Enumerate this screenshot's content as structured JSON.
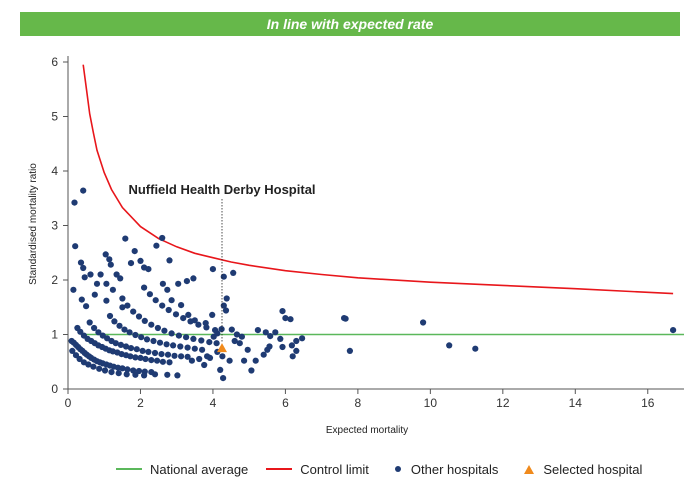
{
  "banner": {
    "text": "In line with expected rate"
  },
  "colors": {
    "banner": "#66b84a",
    "national_average": "#5bb85b",
    "control_limit": "#e8161b",
    "other_hospitals": "#1f3b73",
    "selected_hospital": "#f08a1c",
    "axis": "#555555"
  },
  "legend": {
    "national_average": "National average",
    "control_limit": "Control limit",
    "other_hospitals": "Other hospitals",
    "selected_hospital": "Selected hospital"
  },
  "chart_data": {
    "type": "scatter",
    "xlabel": "Expected mortality",
    "ylabel": "Standardised mortality ratio",
    "xlim": [
      0,
      17
    ],
    "ylim": [
      0,
      6
    ],
    "xticks": [
      0,
      2,
      4,
      6,
      8,
      10,
      12,
      14,
      16
    ],
    "yticks": [
      0,
      1,
      2,
      3,
      4,
      5,
      6
    ],
    "national_average": 1,
    "annotation": {
      "text": "Nuffield Health Derby Hospital",
      "x": 4.25
    },
    "selected_hospital": {
      "x": 4.25,
      "y": 0.75
    },
    "control_limit": [
      [
        0.42,
        5.95
      ],
      [
        0.5,
        5.55
      ],
      [
        0.6,
        5.05
      ],
      [
        0.7,
        4.7
      ],
      [
        0.8,
        4.38
      ],
      [
        1.0,
        3.97
      ],
      [
        1.2,
        3.66
      ],
      [
        1.5,
        3.33
      ],
      [
        2.0,
        2.98
      ],
      [
        2.5,
        2.76
      ],
      [
        3.0,
        2.61
      ],
      [
        3.5,
        2.49
      ],
      [
        4.0,
        2.41
      ],
      [
        4.5,
        2.33
      ],
      [
        5.0,
        2.27
      ],
      [
        6.0,
        2.17
      ],
      [
        7.0,
        2.1
      ],
      [
        8.0,
        2.04
      ],
      [
        10.0,
        1.96
      ],
      [
        12.0,
        1.9
      ],
      [
        14.0,
        1.84
      ],
      [
        16.7,
        1.75
      ]
    ],
    "other_hospitals": [
      [
        0.18,
        3.42
      ],
      [
        0.42,
        3.64
      ],
      [
        0.2,
        2.62
      ],
      [
        0.36,
        2.32
      ],
      [
        0.42,
        2.22
      ],
      [
        0.62,
        2.1
      ],
      [
        0.46,
        2.05
      ],
      [
        0.5,
        1.52
      ],
      [
        0.38,
        1.64
      ],
      [
        0.15,
        1.82
      ],
      [
        0.8,
        1.93
      ],
      [
        0.9,
        2.1
      ],
      [
        0.74,
        1.73
      ],
      [
        1.04,
        2.47
      ],
      [
        1.14,
        2.38
      ],
      [
        1.18,
        2.28
      ],
      [
        1.06,
        1.93
      ],
      [
        1.34,
        2.1
      ],
      [
        1.44,
        2.03
      ],
      [
        1.24,
        1.82
      ],
      [
        1.06,
        1.62
      ],
      [
        1.5,
        1.5
      ],
      [
        1.84,
        2.53
      ],
      [
        1.58,
        2.76
      ],
      [
        1.74,
        2.31
      ],
      [
        2.0,
        2.35
      ],
      [
        2.1,
        2.23
      ],
      [
        2.22,
        2.2
      ],
      [
        2.44,
        2.63
      ],
      [
        2.6,
        2.77
      ],
      [
        2.8,
        2.36
      ],
      [
        2.62,
        1.93
      ],
      [
        2.74,
        1.82
      ],
      [
        2.86,
        1.63
      ],
      [
        3.04,
        1.93
      ],
      [
        3.28,
        1.98
      ],
      [
        3.46,
        2.03
      ],
      [
        3.12,
        1.54
      ],
      [
        3.32,
        1.36
      ],
      [
        3.5,
        1.26
      ],
      [
        3.8,
        1.21
      ],
      [
        3.98,
        1.36
      ],
      [
        4.0,
        2.2
      ],
      [
        4.3,
        2.06
      ],
      [
        4.56,
        2.13
      ],
      [
        4.38,
        1.66
      ],
      [
        4.3,
        1.53
      ],
      [
        4.36,
        1.44
      ],
      [
        4.24,
        1.1
      ],
      [
        4.52,
        1.09
      ],
      [
        4.66,
        1.0
      ],
      [
        4.8,
        0.96
      ],
      [
        4.6,
        0.88
      ],
      [
        4.74,
        0.84
      ],
      [
        4.26,
        0.6
      ],
      [
        4.46,
        0.52
      ],
      [
        4.2,
        0.35
      ],
      [
        4.28,
        0.2
      ],
      [
        3.76,
        0.44
      ],
      [
        3.92,
        0.57
      ],
      [
        5.24,
        1.08
      ],
      [
        5.46,
        1.04
      ],
      [
        5.58,
        0.97
      ],
      [
        5.72,
        1.04
      ],
      [
        5.86,
        0.92
      ],
      [
        6.14,
        1.28
      ],
      [
        5.92,
        1.43
      ],
      [
        6.0,
        1.3
      ],
      [
        6.3,
        0.88
      ],
      [
        6.46,
        0.93
      ],
      [
        6.18,
        0.8
      ],
      [
        6.3,
        0.7
      ],
      [
        6.2,
        0.6
      ],
      [
        5.92,
        0.77
      ],
      [
        5.56,
        0.78
      ],
      [
        5.5,
        0.72
      ],
      [
        5.4,
        0.63
      ],
      [
        5.18,
        0.52
      ],
      [
        5.06,
        0.34
      ],
      [
        4.86,
        0.52
      ],
      [
        4.96,
        0.72
      ],
      [
        7.62,
        1.3
      ],
      [
        7.66,
        1.29
      ],
      [
        7.78,
        0.7
      ],
      [
        9.8,
        1.22
      ],
      [
        10.52,
        0.8
      ],
      [
        11.24,
        0.74
      ],
      [
        16.7,
        1.08
      ],
      [
        0.1,
        0.88
      ],
      [
        0.16,
        0.85
      ],
      [
        0.22,
        0.81
      ],
      [
        0.28,
        0.77
      ],
      [
        0.34,
        0.73
      ],
      [
        0.4,
        0.7
      ],
      [
        0.46,
        0.66
      ],
      [
        0.52,
        0.63
      ],
      [
        0.58,
        0.6
      ],
      [
        0.64,
        0.57
      ],
      [
        0.72,
        0.54
      ],
      [
        0.8,
        0.51
      ],
      [
        0.88,
        0.49
      ],
      [
        0.96,
        0.47
      ],
      [
        1.06,
        0.45
      ],
      [
        1.16,
        0.43
      ],
      [
        1.26,
        0.41
      ],
      [
        1.38,
        0.39
      ],
      [
        1.5,
        0.38
      ],
      [
        1.64,
        0.36
      ],
      [
        1.8,
        0.34
      ],
      [
        1.96,
        0.33
      ],
      [
        2.12,
        0.32
      ],
      [
        2.3,
        0.31
      ],
      [
        0.26,
        1.12
      ],
      [
        0.34,
        1.05
      ],
      [
        0.44,
        0.98
      ],
      [
        0.54,
        0.92
      ],
      [
        0.64,
        0.88
      ],
      [
        0.74,
        0.84
      ],
      [
        0.84,
        0.8
      ],
      [
        0.94,
        0.77
      ],
      [
        1.04,
        0.74
      ],
      [
        1.14,
        0.71
      ],
      [
        1.24,
        0.69
      ],
      [
        1.36,
        0.67
      ],
      [
        1.48,
        0.64
      ],
      [
        1.6,
        0.62
      ],
      [
        1.72,
        0.6
      ],
      [
        1.86,
        0.58
      ],
      [
        2.0,
        0.57
      ],
      [
        2.14,
        0.55
      ],
      [
        2.3,
        0.53
      ],
      [
        2.46,
        0.52
      ],
      [
        2.62,
        0.5
      ],
      [
        2.8,
        0.49
      ],
      [
        0.6,
        1.22
      ],
      [
        0.72,
        1.12
      ],
      [
        0.84,
        1.04
      ],
      [
        0.96,
        0.98
      ],
      [
        1.08,
        0.93
      ],
      [
        1.2,
        0.88
      ],
      [
        1.32,
        0.84
      ],
      [
        1.46,
        0.81
      ],
      [
        1.6,
        0.78
      ],
      [
        1.74,
        0.75
      ],
      [
        1.9,
        0.73
      ],
      [
        2.06,
        0.7
      ],
      [
        2.22,
        0.68
      ],
      [
        2.4,
        0.66
      ],
      [
        2.58,
        0.64
      ],
      [
        2.76,
        0.63
      ],
      [
        2.94,
        0.61
      ],
      [
        3.12,
        0.6
      ],
      [
        3.3,
        0.59
      ],
      [
        1.16,
        1.34
      ],
      [
        1.28,
        1.24
      ],
      [
        1.42,
        1.16
      ],
      [
        1.56,
        1.09
      ],
      [
        1.7,
        1.04
      ],
      [
        1.86,
        0.99
      ],
      [
        2.02,
        0.95
      ],
      [
        2.18,
        0.91
      ],
      [
        2.36,
        0.88
      ],
      [
        2.54,
        0.85
      ],
      [
        2.72,
        0.82
      ],
      [
        2.9,
        0.8
      ],
      [
        3.1,
        0.78
      ],
      [
        3.3,
        0.76
      ],
      [
        3.5,
        0.74
      ],
      [
        3.7,
        0.72
      ],
      [
        1.5,
        1.66
      ],
      [
        1.64,
        1.53
      ],
      [
        1.8,
        1.42
      ],
      [
        1.96,
        1.33
      ],
      [
        2.12,
        1.25
      ],
      [
        2.3,
        1.18
      ],
      [
        2.48,
        1.12
      ],
      [
        2.66,
        1.07
      ],
      [
        2.86,
        1.02
      ],
      [
        3.06,
        0.98
      ],
      [
        3.26,
        0.95
      ],
      [
        3.46,
        0.92
      ],
      [
        3.68,
        0.89
      ],
      [
        3.9,
        0.86
      ],
      [
        4.1,
        0.84
      ],
      [
        2.1,
        1.86
      ],
      [
        2.26,
        1.74
      ],
      [
        2.42,
        1.63
      ],
      [
        2.6,
        1.53
      ],
      [
        2.78,
        1.45
      ],
      [
        2.98,
        1.37
      ],
      [
        3.18,
        1.3
      ],
      [
        3.38,
        1.24
      ],
      [
        3.6,
        1.18
      ],
      [
        3.82,
        1.13
      ],
      [
        4.06,
        1.08
      ],
      [
        0.12,
        0.7
      ],
      [
        0.22,
        0.62
      ],
      [
        0.32,
        0.55
      ],
      [
        0.44,
        0.49
      ],
      [
        0.56,
        0.45
      ],
      [
        0.7,
        0.41
      ],
      [
        0.86,
        0.37
      ],
      [
        1.02,
        0.34
      ],
      [
        1.2,
        0.31
      ],
      [
        1.4,
        0.29
      ],
      [
        1.62,
        0.27
      ],
      [
        1.86,
        0.26
      ],
      [
        2.1,
        0.25
      ],
      [
        2.4,
        0.27
      ],
      [
        2.74,
        0.26
      ],
      [
        3.02,
        0.25
      ],
      [
        3.42,
        0.52
      ],
      [
        3.62,
        0.55
      ],
      [
        3.84,
        0.6
      ],
      [
        4.12,
        0.68
      ],
      [
        4.02,
        0.96
      ],
      [
        4.12,
        1.02
      ]
    ]
  }
}
